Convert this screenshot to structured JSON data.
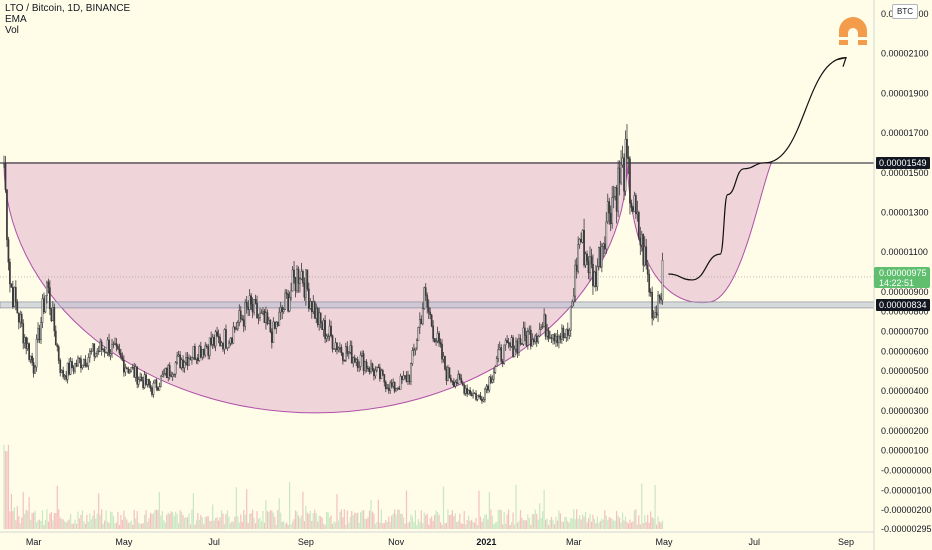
{
  "legend": {
    "symbol": "LTO / Bitcoin, 1D, BINANCE",
    "ema": "EMA",
    "vol": "Vol"
  },
  "currency_button": "BTC",
  "logo_icon": "tradingview-style-arch-icon",
  "colors": {
    "background": "#fffce8",
    "cup_fill": "#e9c7d6",
    "cup_stroke": "#b050a8",
    "candles": "#3a3a3a",
    "volume": "#c7e8c2",
    "volume_red": "#f4c0c0",
    "resistance": "#131722",
    "support_band": "#b7bdd0",
    "current_price_tag": "#5fbf6e",
    "logo": "#f39c4b"
  },
  "chart_data": {
    "type": "candlestick",
    "title": "LTO / Bitcoin, 1D, BINANCE",
    "x_tick_labels": [
      "Mar",
      "May",
      "Jul",
      "Sep",
      "Nov",
      "2021",
      "Mar",
      "May",
      "Jul",
      "Sep"
    ],
    "y_tick_labels": [
      "0.00002300",
      "0.00002100",
      "0.00001900",
      "0.00001700",
      "0.00001500",
      "0.00001300",
      "0.00001100",
      "0.00000900",
      "0.00000800",
      "0.00000700",
      "0.00000600",
      "0.00000500",
      "0.00000400",
      "0.00000300",
      "0.00000200",
      "0.00000100",
      "-0.00000000",
      "-0.00000100",
      "-0.00000200",
      "-0.00000295"
    ],
    "y_tick_values": [
      2.3e-05,
      2.1e-05,
      1.9e-05,
      1.7e-05,
      1.5e-05,
      1.3e-05,
      1.1e-05,
      9e-06,
      8e-06,
      7e-06,
      6e-06,
      5e-06,
      4e-06,
      3e-06,
      2e-06,
      1e-06,
      0.0,
      -1e-06,
      -2e-06,
      -2.95e-06
    ],
    "ylim": [
      -2.95e-06,
      2.45e-05
    ],
    "resistance_level": {
      "label": "0.00001549",
      "value": 1.549e-05
    },
    "support_level": {
      "label": "0.00000834",
      "value": 8.34e-06
    },
    "current_price": {
      "label": "0.00000975",
      "value": 9.75e-06,
      "countdown": "14:22:51"
    },
    "price_path": [
      {
        "date": "2020-02-10",
        "close": 1.55e-05
      },
      {
        "date": "2020-02-14",
        "close": 9.5e-06
      },
      {
        "date": "2020-02-22",
        "close": 7.2e-06
      },
      {
        "date": "2020-03-01",
        "close": 5.2e-06
      },
      {
        "date": "2020-03-10",
        "close": 9.4e-06
      },
      {
        "date": "2020-03-20",
        "close": 4.8e-06
      },
      {
        "date": "2020-04-05",
        "close": 5.7e-06
      },
      {
        "date": "2020-04-20",
        "close": 6.3e-06
      },
      {
        "date": "2020-05-05",
        "close": 5.1e-06
      },
      {
        "date": "2020-05-20",
        "close": 4.1e-06
      },
      {
        "date": "2020-06-05",
        "close": 5.4e-06
      },
      {
        "date": "2020-06-25",
        "close": 6.3e-06
      },
      {
        "date": "2020-07-10",
        "close": 6.7e-06
      },
      {
        "date": "2020-07-25",
        "close": 8.2e-06
      },
      {
        "date": "2020-08-10",
        "close": 6.9e-06
      },
      {
        "date": "2020-08-28",
        "close": 1.02e-05
      },
      {
        "date": "2020-09-10",
        "close": 7.4e-06
      },
      {
        "date": "2020-09-25",
        "close": 6.1e-06
      },
      {
        "date": "2020-10-10",
        "close": 5.5e-06
      },
      {
        "date": "2020-10-30",
        "close": 4.1e-06
      },
      {
        "date": "2020-11-10",
        "close": 4.8e-06
      },
      {
        "date": "2020-11-20",
        "close": 8.7e-06
      },
      {
        "date": "2020-12-05",
        "close": 4.9e-06
      },
      {
        "date": "2020-12-28",
        "close": 3.6e-06
      },
      {
        "date": "2021-01-10",
        "close": 5.8e-06
      },
      {
        "date": "2021-01-25",
        "close": 6.6e-06
      },
      {
        "date": "2021-02-10",
        "close": 7.3e-06
      },
      {
        "date": "2021-02-25",
        "close": 6.6e-06
      },
      {
        "date": "2021-03-05",
        "close": 1.18e-05
      },
      {
        "date": "2021-03-15",
        "close": 9.6e-06
      },
      {
        "date": "2021-03-25",
        "close": 1.34e-05
      },
      {
        "date": "2021-04-05",
        "close": 1.54e-05
      },
      {
        "date": "2021-04-12",
        "close": 1.25e-05
      },
      {
        "date": "2021-04-18",
        "close": 1.07e-05
      },
      {
        "date": "2021-04-24",
        "close": 7.8e-06
      },
      {
        "date": "2021-04-30",
        "close": 9.75e-06
      }
    ],
    "cup_pattern": {
      "left_rim": {
        "date": "2020-02-10",
        "value": 1.55e-05
      },
      "bottom": {
        "date": "2020-10-02",
        "value": 2.9e-06
      },
      "right_rim": {
        "date": "2021-04-06",
        "value": 1.55e-05
      },
      "handle_low": {
        "date": "2021-06-02",
        "value": 8.5e-06
      }
    },
    "projection_arrow": [
      {
        "date": "2021-05-04",
        "value": 9.9e-06
      },
      {
        "date": "2021-05-20",
        "value": 9.6e-06
      },
      {
        "date": "2021-06-08",
        "value": 1.09e-05
      },
      {
        "date": "2021-06-13",
        "value": 1.39e-05
      },
      {
        "date": "2021-06-24",
        "value": 1.52e-05
      },
      {
        "date": "2021-07-08",
        "value": 1.55e-05
      },
      {
        "date": "2021-09-01",
        "value": 2.08e-05
      }
    ]
  }
}
